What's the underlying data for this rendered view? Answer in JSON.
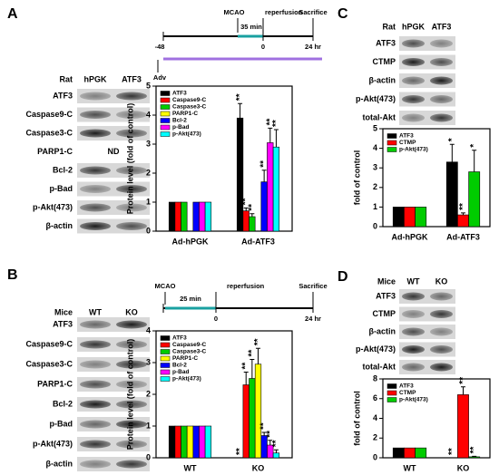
{
  "panels": [
    "A",
    "B",
    "C",
    "D"
  ],
  "timeline_a": {
    "mcao": "MCAO",
    "duration": "35 min",
    "reperfusion": "reperfusion",
    "sacrifice": "Sacrifice",
    "start": "-48",
    "zero": "0",
    "end": "24 hr",
    "adv": "Adv"
  },
  "timeline_b": {
    "mcao": "MCAO",
    "duration": "25 min",
    "reperfusion": "reperfusion",
    "sacrifice": "Sacrifice",
    "zero": "0",
    "end": "24 hr"
  },
  "blots": [
    {
      "header": [
        "Rat",
        "hPGK",
        "ATF3"
      ],
      "rows": [
        {
          "label": "ATF3"
        },
        {
          "label": "Caspase9-C"
        },
        {
          "label": "Caspase3-C"
        },
        {
          "label": "PARP1-C",
          "note": "ND"
        },
        {
          "label": "Bcl-2"
        },
        {
          "label": "p-Bad"
        },
        {
          "label": "p-Akt(473)"
        },
        {
          "label": "β-actin"
        }
      ]
    },
    {
      "header": [
        "Mice",
        "WT",
        "KO"
      ],
      "rows": [
        {
          "label": "ATF3"
        },
        {
          "label": "Caspase9-C"
        },
        {
          "label": "Caspase3-C"
        },
        {
          "label": "PARP1-C"
        },
        {
          "label": "Bcl-2"
        },
        {
          "label": "p-Bad"
        },
        {
          "label": "p-Akt(473)"
        },
        {
          "label": "β-actin"
        }
      ]
    },
    {
      "header": [
        "Rat",
        "hPGK",
        "ATF3"
      ],
      "rows": [
        {
          "label": "ATF3"
        },
        {
          "label": "CTMP"
        },
        {
          "label": "β-actin"
        },
        {
          "label": "p-Akt(473)"
        },
        {
          "label": "total-Akt"
        }
      ]
    },
    {
      "header": [
        "Mice",
        "WT",
        "KO"
      ],
      "rows": [
        {
          "label": "ATF3"
        },
        {
          "label": "CTMP"
        },
        {
          "label": "β-actin"
        },
        {
          "label": "p-Akt(473)"
        },
        {
          "label": "total-Akt"
        }
      ]
    }
  ],
  "chart_data": [
    {
      "type": "bar",
      "ylabel": "Protein level (fold of control)",
      "categories": [
        "Ad-hPGK",
        "Ad-ATF3"
      ],
      "ylim": [
        0,
        5
      ],
      "yticks": [
        0,
        1,
        2,
        3,
        4,
        5
      ],
      "series": [
        {
          "name": "ATF3",
          "color": "#000000",
          "values": [
            1,
            3.9
          ],
          "errors": [
            0,
            0.5
          ],
          "significance": [
            null,
            "**"
          ]
        },
        {
          "name": "Caspase9-C",
          "color": "#ff0000",
          "values": [
            1,
            0.7
          ],
          "errors": [
            0,
            0.1
          ],
          "significance": [
            null,
            "**"
          ]
        },
        {
          "name": "Caspase3-C",
          "color": "#00cc00",
          "values": [
            1,
            0.5
          ],
          "errors": [
            0,
            0.1
          ],
          "significance": [
            null,
            "**"
          ]
        },
        {
          "name": "PARP1-C",
          "color": "#ffff00",
          "values": [
            null,
            null
          ],
          "errors": [
            null,
            null
          ],
          "significance": [
            null,
            null
          ]
        },
        {
          "name": "Bcl-2",
          "color": "#0000ff",
          "values": [
            1,
            1.7
          ],
          "errors": [
            0,
            0.4
          ],
          "significance": [
            null,
            "**"
          ]
        },
        {
          "name": "p-Bad",
          "color": "#ff00ff",
          "values": [
            1,
            3.05
          ],
          "errors": [
            0,
            0.5
          ],
          "significance": [
            null,
            "**"
          ]
        },
        {
          "name": "p-Akt(473)",
          "color": "#00ffff",
          "values": [
            1,
            2.9
          ],
          "errors": [
            0,
            0.6
          ],
          "significance": [
            null,
            "**"
          ]
        }
      ]
    },
    {
      "type": "bar",
      "ylabel": "Protein level (fold of control)",
      "categories": [
        "WT",
        "KO"
      ],
      "ylim": [
        0,
        4
      ],
      "yticks": [
        0,
        1,
        2,
        3,
        4
      ],
      "series": [
        {
          "name": "ATF3",
          "color": "#000000",
          "values": [
            1,
            0
          ],
          "errors": [
            0,
            0
          ],
          "significance": [
            null,
            "**"
          ]
        },
        {
          "name": "Caspase9-C",
          "color": "#ff0000",
          "values": [
            1,
            2.3
          ],
          "errors": [
            0,
            0.4
          ],
          "significance": [
            null,
            "**"
          ]
        },
        {
          "name": "Caspase3-C",
          "color": "#00cc00",
          "values": [
            1,
            2.5
          ],
          "errors": [
            0,
            0.6
          ],
          "significance": [
            null,
            "**"
          ]
        },
        {
          "name": "PARP1-C",
          "color": "#ffff00",
          "values": [
            1,
            2.95
          ],
          "errors": [
            0,
            0.5
          ],
          "significance": [
            null,
            "**"
          ]
        },
        {
          "name": "Bcl-2",
          "color": "#0000ff",
          "values": [
            1,
            0.7
          ],
          "errors": [
            0,
            0.1
          ],
          "significance": [
            null,
            "**"
          ]
        },
        {
          "name": "p-Bad",
          "color": "#ff00ff",
          "values": [
            1,
            0.4
          ],
          "errors": [
            0,
            0.15
          ],
          "significance": [
            null,
            "**"
          ]
        },
        {
          "name": "p-Akt(473)",
          "color": "#00ffff",
          "values": [
            1,
            0.15
          ],
          "errors": [
            0,
            0.1
          ],
          "significance": [
            null,
            "**"
          ]
        }
      ]
    },
    {
      "type": "bar",
      "ylabel": "fold of control",
      "categories": [
        "Ad-hPGK",
        "Ad-ATF3"
      ],
      "ylim": [
        0,
        5
      ],
      "yticks": [
        0,
        1,
        2,
        3,
        4,
        5
      ],
      "series": [
        {
          "name": "ATF3",
          "color": "#000000",
          "values": [
            1,
            3.3
          ],
          "errors": [
            0,
            0.9
          ],
          "significance": [
            null,
            "*"
          ]
        },
        {
          "name": "CTMP",
          "color": "#ff0000",
          "values": [
            1,
            0.6
          ],
          "errors": [
            0,
            0.1
          ],
          "significance": [
            null,
            "**"
          ]
        },
        {
          "name": "p-Akt(473)",
          "color": "#00cc00",
          "values": [
            1,
            2.8
          ],
          "errors": [
            0,
            1.1
          ],
          "significance": [
            null,
            "*"
          ]
        }
      ]
    },
    {
      "type": "bar",
      "ylabel": "fold of control",
      "categories": [
        "WT",
        "KO"
      ],
      "ylim": [
        0,
        8
      ],
      "yticks": [
        0,
        2,
        4,
        6,
        8
      ],
      "series": [
        {
          "name": "ATF3",
          "color": "#000000",
          "values": [
            1,
            0
          ],
          "errors": [
            0,
            0
          ],
          "significance": [
            null,
            "**"
          ]
        },
        {
          "name": "CTMP",
          "color": "#ff0000",
          "values": [
            1,
            6.4
          ],
          "errors": [
            0,
            0.8
          ],
          "significance": [
            null,
            "**"
          ]
        },
        {
          "name": "p-Akt(473)",
          "color": "#00cc00",
          "values": [
            1,
            0.1
          ],
          "errors": [
            0,
            0.05
          ],
          "significance": [
            null,
            "**"
          ]
        }
      ]
    }
  ]
}
